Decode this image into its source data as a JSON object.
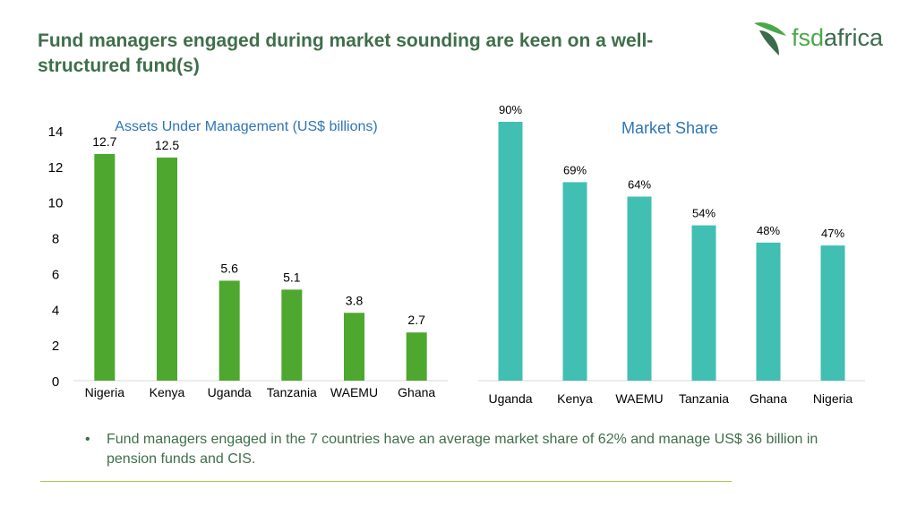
{
  "slide": {
    "title": "Fund managers engaged during market sounding are keen on a well-structured fund(s)",
    "bullet": "Fund managers engaged in the 7 countries have an average market share of 62% and manage US$ 36 billion in pension funds and CIS.",
    "bullet_symbol": "•"
  },
  "logo": {
    "part1": "fsd",
    "part2": "africa"
  },
  "colors": {
    "aum_bar": "#4ea72e",
    "share_bar": "#40bfb2",
    "title": "#3f6f4a",
    "chart_title": "#2e75b6"
  },
  "chart_data": [
    {
      "type": "bar",
      "title": "Assets Under Management (US$ billions)",
      "categories": [
        "Nigeria",
        "Kenya",
        "Uganda",
        "Tanzania",
        "WAEMU",
        "Ghana"
      ],
      "values": [
        12.7,
        12.5,
        5.6,
        5.1,
        3.8,
        2.7
      ],
      "data_labels": [
        "12.7",
        "12.5",
        "5.6",
        "5.1",
        "3.8",
        "2.7"
      ],
      "yticks": [
        "0",
        "2",
        "4",
        "6",
        "8",
        "10",
        "12",
        "14"
      ],
      "ylim": [
        0,
        14
      ],
      "grid": false
    },
    {
      "type": "bar",
      "title": "Market Share",
      "categories": [
        "Uganda",
        "Kenya",
        "WAEMU",
        "Tanzania",
        "Ghana",
        "Nigeria"
      ],
      "values": [
        90,
        69,
        64,
        54,
        48,
        47
      ],
      "data_labels": [
        "90%",
        "69%",
        "64%",
        "54%",
        "48%",
        "47%"
      ],
      "ylim": [
        0,
        90
      ],
      "grid": false
    }
  ]
}
